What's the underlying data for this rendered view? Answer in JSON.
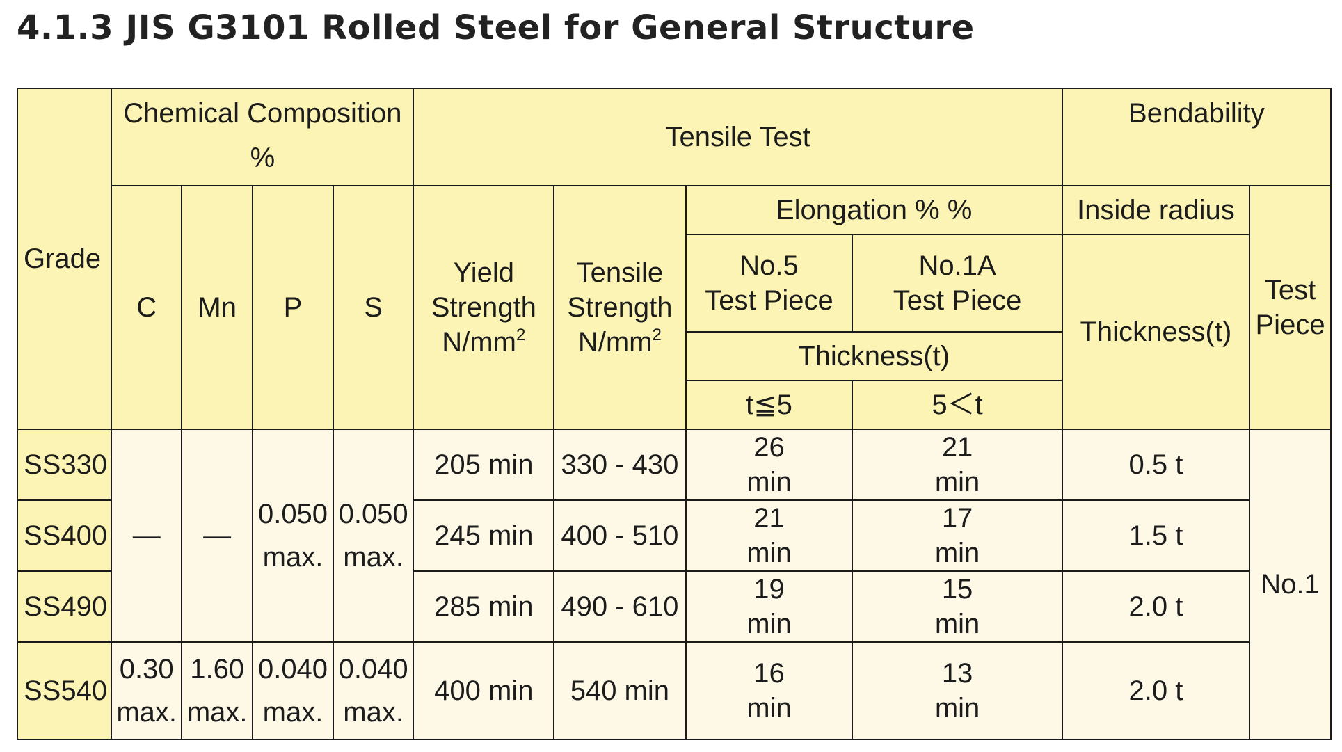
{
  "title": "4.1.3 JIS G3101 Rolled Steel for General Structure",
  "headers": {
    "grade": "Grade",
    "chemical_composition": "Chemical Composition",
    "chemical_composition_unit": "%",
    "tensile_test": "Tensile Test",
    "bendability": "Bendability",
    "c": "C",
    "mn": "Mn",
    "p": "P",
    "s": "S",
    "yield_strength_line1": "Yield",
    "yield_strength_line2": "Strength",
    "yield_strength_unit": "N/mm",
    "tensile_strength_line1": "Tensile",
    "tensile_strength_line2": "Strength",
    "tensile_strength_unit": "N/mm",
    "unit_superscript": "2",
    "elongation": "Elongation % %",
    "no5_line1": "No.5",
    "no5_line2": "Test Piece",
    "no1a_line1": "No.1A",
    "no1a_line2": "Test Piece",
    "thickness_t": "Thickness(t)",
    "t_le_5": "t≦5",
    "t_gt_5": "5＜t",
    "inside_radius": "Inside radius",
    "bend_thickness": "Thickness(t)",
    "test_piece_line1": "Test",
    "test_piece_line2": "Piece"
  },
  "rows": [
    {
      "grade": "SS330",
      "yield": "205 min",
      "tensile": "330 - 430",
      "elong_a1": "26",
      "elong_a2": "min",
      "elong_b1": "21",
      "elong_b2": "min",
      "radius": "0.5 t"
    },
    {
      "grade": "SS400",
      "yield": "245 min",
      "tensile": "400 - 510",
      "elong_a1": "21",
      "elong_a2": "min",
      "elong_b1": "17",
      "elong_b2": "min",
      "radius": "1.5 t"
    },
    {
      "grade": "SS490",
      "yield": "285 min",
      "tensile": "490 - 610",
      "elong_a1": "19",
      "elong_a2": "min",
      "elong_b1": "15",
      "elong_b2": "min",
      "radius": "2.0 t"
    },
    {
      "grade": "SS540",
      "c1": "0.30",
      "c2": "max.",
      "mn1": "1.60",
      "mn2": "max.",
      "p1": "0.040",
      "p2": "max.",
      "s1": "0.040",
      "s2": "max.",
      "yield": "400 min",
      "tensile": "540 min",
      "elong_a1": "16",
      "elong_a2": "min",
      "elong_b1": "13",
      "elong_b2": "min",
      "radius": "2.0 t"
    }
  ],
  "merged": {
    "c": "—",
    "mn": "—",
    "p1": "0.050",
    "p2": "max.",
    "s1": "0.050",
    "s2": "max.",
    "test_piece": "No.1"
  }
}
